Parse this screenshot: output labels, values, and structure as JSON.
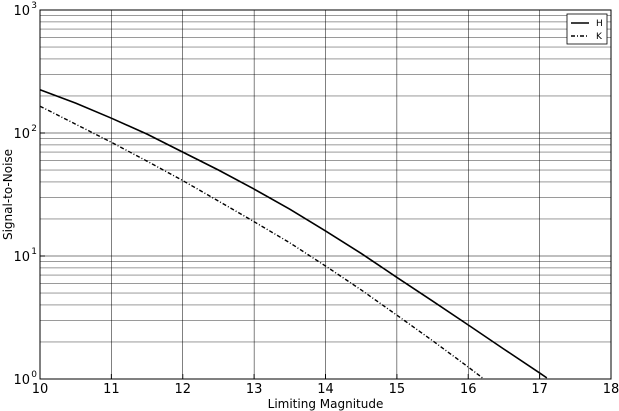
{
  "chart_data": {
    "type": "line",
    "xlabel": "Limiting Magnitude",
    "ylabel": "Signal-to-Noise",
    "xlim": [
      10,
      18
    ],
    "ylim": [
      1,
      1000
    ],
    "yscale": "log",
    "grid": true,
    "grid_minor_y": true,
    "legend_position": "top-right",
    "x_ticks": [
      "10",
      "11",
      "12",
      "13",
      "14",
      "15",
      "16",
      "17",
      "18"
    ],
    "y_ticks": [
      {
        "base": "10",
        "exp": "0"
      },
      {
        "base": "10",
        "exp": "1"
      },
      {
        "base": "10",
        "exp": "2"
      },
      {
        "base": "10",
        "exp": "3"
      }
    ],
    "series": [
      {
        "name": "H",
        "style": "solid",
        "color": "#000000",
        "x": [
          10,
          10.5,
          11,
          11.5,
          12,
          12.5,
          13,
          13.5,
          14,
          14.5,
          15,
          15.5,
          16,
          16.5,
          17,
          17.1
        ],
        "y": [
          225,
          175,
          132,
          98,
          70,
          50,
          35,
          24,
          16,
          10.5,
          6.7,
          4.3,
          2.75,
          1.75,
          1.12,
          1.02
        ]
      },
      {
        "name": "K",
        "style": "dashdot",
        "color": "#000000",
        "x": [
          10,
          10.5,
          11,
          11.5,
          12,
          12.5,
          13,
          13.5,
          14,
          14.5,
          15,
          15.5,
          16,
          16.2
        ],
        "y": [
          165,
          118,
          84,
          59,
          41,
          28,
          19,
          12.8,
          8.3,
          5.3,
          3.3,
          2.05,
          1.25,
          1.02
        ]
      }
    ]
  }
}
